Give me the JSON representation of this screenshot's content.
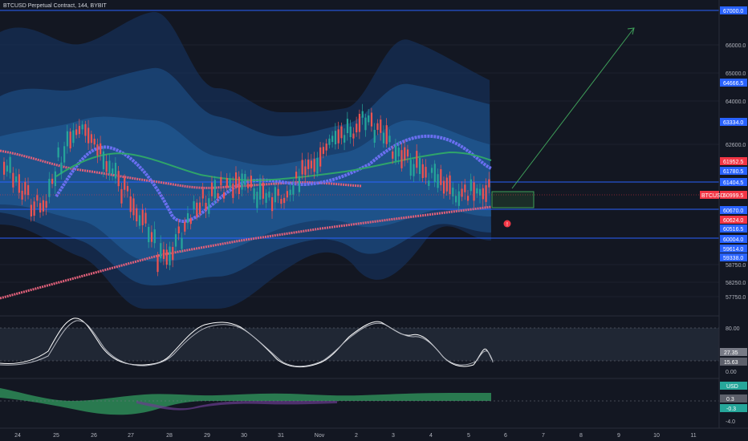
{
  "header": {
    "symbol_title": "BTCUSD Perpetual Contract, 144, BYBIT"
  },
  "price_axis": {
    "ticks": [
      "67000.0",
      "66000.0",
      "65000.0",
      "64000.0",
      "62600.0",
      "58750.0",
      "58250.0",
      "57750.0"
    ],
    "badges": [
      {
        "label": "67000.0",
        "color": "#2962ff"
      },
      {
        "label": "64666.5",
        "color": "#2962ff"
      },
      {
        "label": "63334.0",
        "color": "#2962ff"
      },
      {
        "label": "61952.5",
        "color": "#f23645"
      },
      {
        "label": "61780.5",
        "color": "#2962ff"
      },
      {
        "label": "61404.5",
        "color": "#2962ff"
      },
      {
        "label": "60999.5",
        "color": "#f23645"
      },
      {
        "label": "60670.0",
        "color": "#2962ff"
      },
      {
        "label": "60624.0",
        "color": "#f23645"
      },
      {
        "label": "60516.5",
        "color": "#2962ff"
      },
      {
        "label": "60004.0",
        "color": "#2962ff"
      },
      {
        "label": "59614.0",
        "color": "#2962ff"
      },
      {
        "label": "59338.0",
        "color": "#2962ff"
      }
    ],
    "symbol_tag": "BTCUSD"
  },
  "oscillator_axis": {
    "ticks": [
      "80.00",
      "0.00"
    ],
    "badges": [
      {
        "label": "27.35",
        "color": "#787b86"
      },
      {
        "label": "15.63",
        "color": "#787b86"
      }
    ]
  },
  "histogram_axis": {
    "ticks": [
      "-4.0"
    ],
    "badges": [
      {
        "label": "USD",
        "color": "#26a69a"
      },
      {
        "label": "0.3",
        "color": "#787b86"
      },
      {
        "label": "-0.3",
        "color": "#26a69a"
      }
    ]
  },
  "time_axis": [
    "24",
    "25",
    "26",
    "27",
    "28",
    "29",
    "30",
    "31",
    "Nov",
    "2",
    "3",
    "4",
    "5",
    "6",
    "7",
    "8",
    "9",
    "10",
    "11"
  ],
  "alert_icon": "exclamation-alert-icon"
}
